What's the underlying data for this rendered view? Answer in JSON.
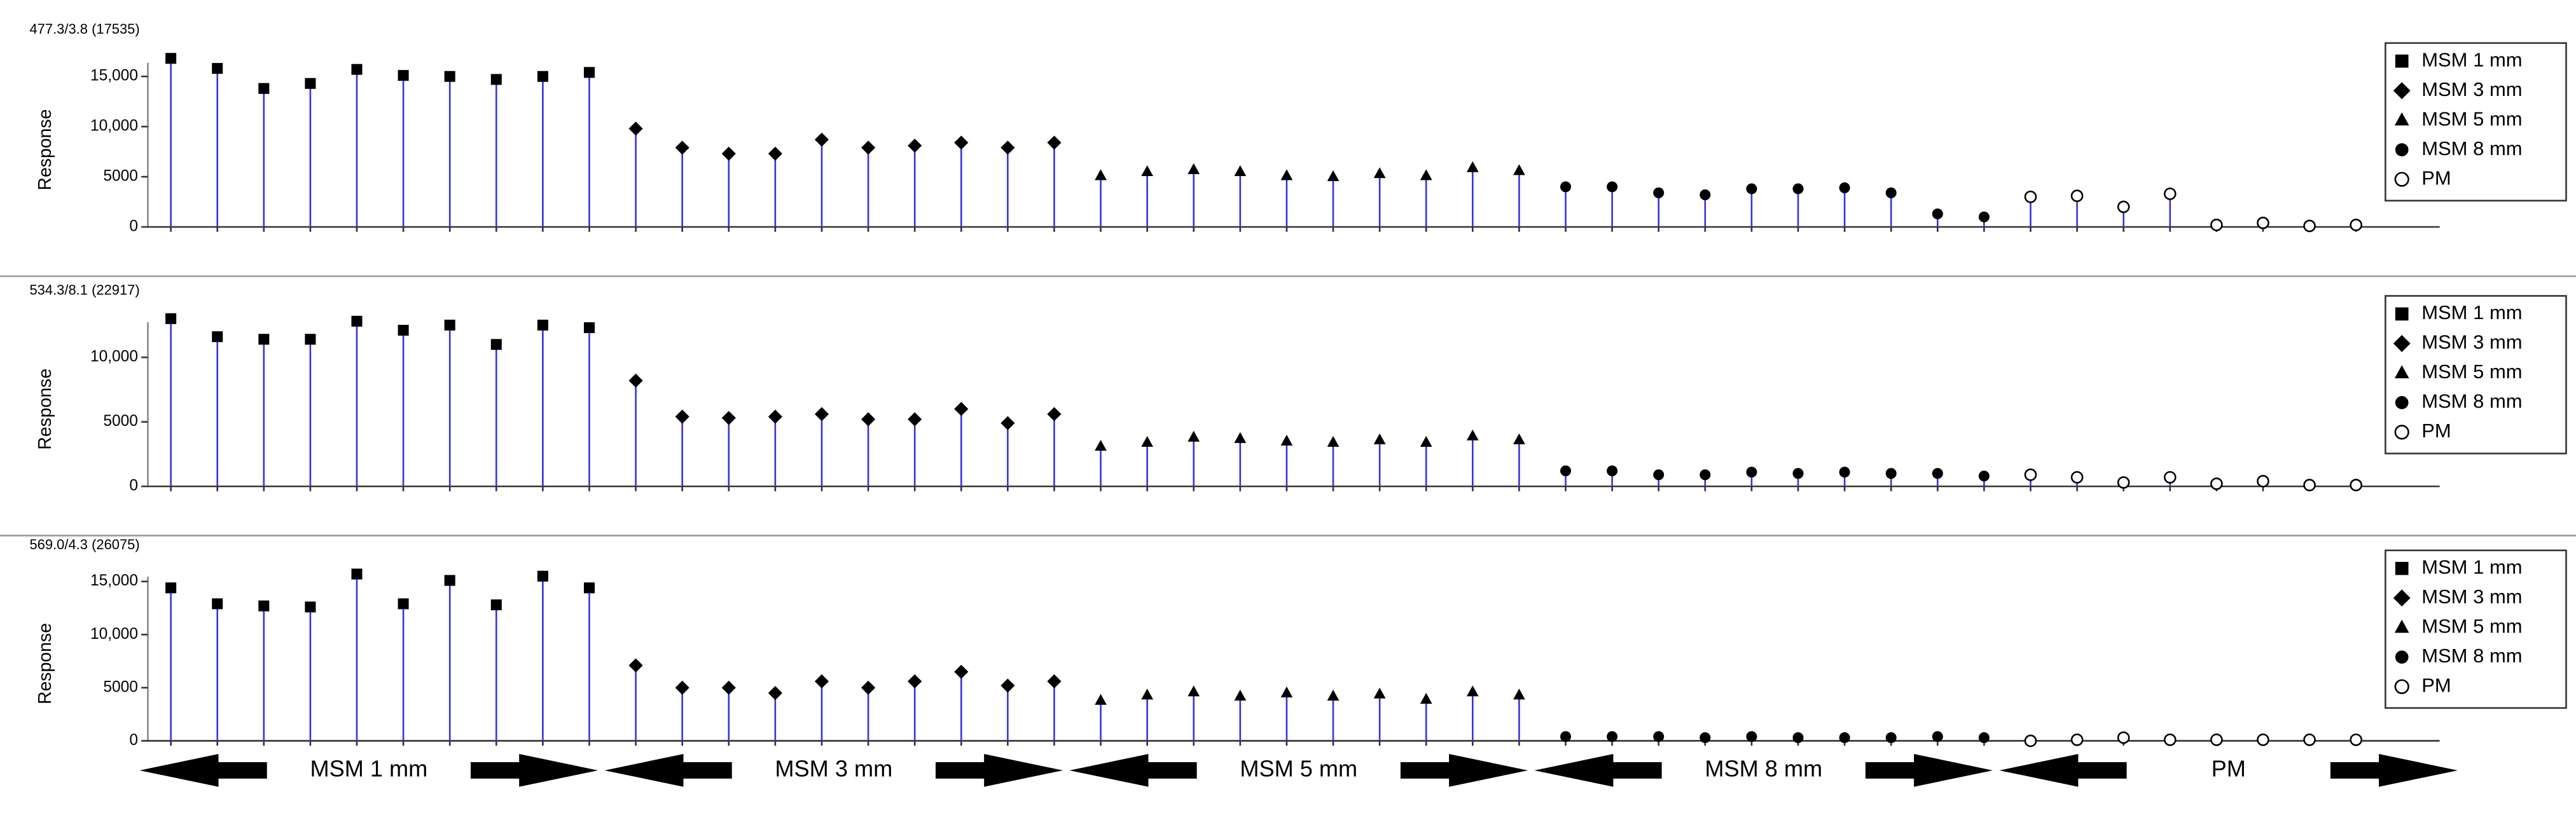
{
  "chart_data": [
    {
      "type": "stem",
      "title": "477.3/3.8 (17535)",
      "y_label": "Response",
      "ylim": [
        0,
        18000
      ],
      "yticks": [
        0,
        5000,
        {
          "value": 10000,
          "label": "10,000"
        },
        {
          "value": 15000,
          "label": "15,000"
        }
      ],
      "color": "#3333dd",
      "series": [
        {
          "name": "MSM 1 mm",
          "marker": "square",
          "values": [
            16800,
            15800,
            13800,
            14300,
            15700,
            15100,
            15000,
            14700,
            15000,
            15400
          ]
        },
        {
          "name": "MSM 3 mm",
          "marker": "diamond",
          "values": [
            9800,
            7900,
            7300,
            7300,
            8700,
            7900,
            8100,
            8400,
            7900,
            8400
          ]
        },
        {
          "name": "MSM 5 mm",
          "marker": "triangle",
          "values": [
            5100,
            5500,
            5700,
            5500,
            5100,
            5000,
            5300,
            5100,
            5900,
            5600
          ]
        },
        {
          "name": "MSM 8 mm",
          "marker": "circle",
          "values": [
            4000,
            4000,
            3400,
            3200,
            3800,
            3800,
            3900,
            3400,
            1300,
            1000
          ]
        },
        {
          "name": "PM",
          "marker": "open-circle",
          "values": [
            3000,
            3100,
            2000,
            3300,
            200,
            400,
            100,
            200
          ]
        }
      ]
    },
    {
      "type": "stem",
      "title": "534.3/8.1 (22917)",
      "y_label": "Response",
      "ylim": [
        0,
        14000
      ],
      "yticks": [
        0,
        5000,
        {
          "value": 10000,
          "label": "10,000"
        }
      ],
      "color": "#3333dd",
      "series": [
        {
          "name": "MSM 1 mm",
          "marker": "square",
          "values": [
            13000,
            11600,
            11400,
            11400,
            12800,
            12100,
            12500,
            11000,
            12500,
            12300
          ]
        },
        {
          "name": "MSM 3 mm",
          "marker": "diamond",
          "values": [
            8200,
            5400,
            5300,
            5400,
            5600,
            5200,
            5200,
            6000,
            4900,
            5600
          ]
        },
        {
          "name": "MSM 5 mm",
          "marker": "triangle",
          "values": [
            3100,
            3400,
            3800,
            3700,
            3500,
            3400,
            3600,
            3400,
            3900,
            3600
          ]
        },
        {
          "name": "MSM 8 mm",
          "marker": "circle",
          "values": [
            1200,
            1200,
            900,
            900,
            1100,
            1000,
            1100,
            1000,
            1000,
            800
          ]
        },
        {
          "name": "PM",
          "marker": "open-circle",
          "values": [
            900,
            700,
            300,
            700,
            200,
            400,
            100,
            100
          ]
        }
      ]
    },
    {
      "type": "stem",
      "title": "569.0/4.3 (26075)",
      "y_label": "Response",
      "ylim": [
        0,
        17000
      ],
      "yticks": [
        0,
        5000,
        {
          "value": 10000,
          "label": "10,000"
        },
        {
          "value": 15000,
          "label": "15,000"
        }
      ],
      "color": "#3333dd",
      "series": [
        {
          "name": "MSM 1 mm",
          "marker": "square",
          "values": [
            14400,
            12900,
            12700,
            12600,
            15700,
            12900,
            15100,
            12800,
            15500,
            14400
          ]
        },
        {
          "name": "MSM 3 mm",
          "marker": "diamond",
          "values": [
            7100,
            5000,
            5000,
            4500,
            5600,
            5000,
            5600,
            6500,
            5200,
            5600
          ]
        },
        {
          "name": "MSM 5 mm",
          "marker": "triangle",
          "values": [
            3800,
            4300,
            4600,
            4200,
            4500,
            4200,
            4400,
            3900,
            4600,
            4300
          ]
        },
        {
          "name": "MSM 8 mm",
          "marker": "circle",
          "values": [
            400,
            400,
            400,
            300,
            400,
            300,
            300,
            300,
            400,
            300
          ]
        },
        {
          "name": "PM",
          "marker": "open-circle",
          "values": [
            0,
            100,
            300,
            100,
            100,
            100,
            100,
            100
          ]
        }
      ]
    }
  ],
  "group_labels": [
    "MSM 1 mm",
    "MSM 3 mm",
    "MSM 5 mm",
    "MSM 8 mm",
    "PM"
  ]
}
